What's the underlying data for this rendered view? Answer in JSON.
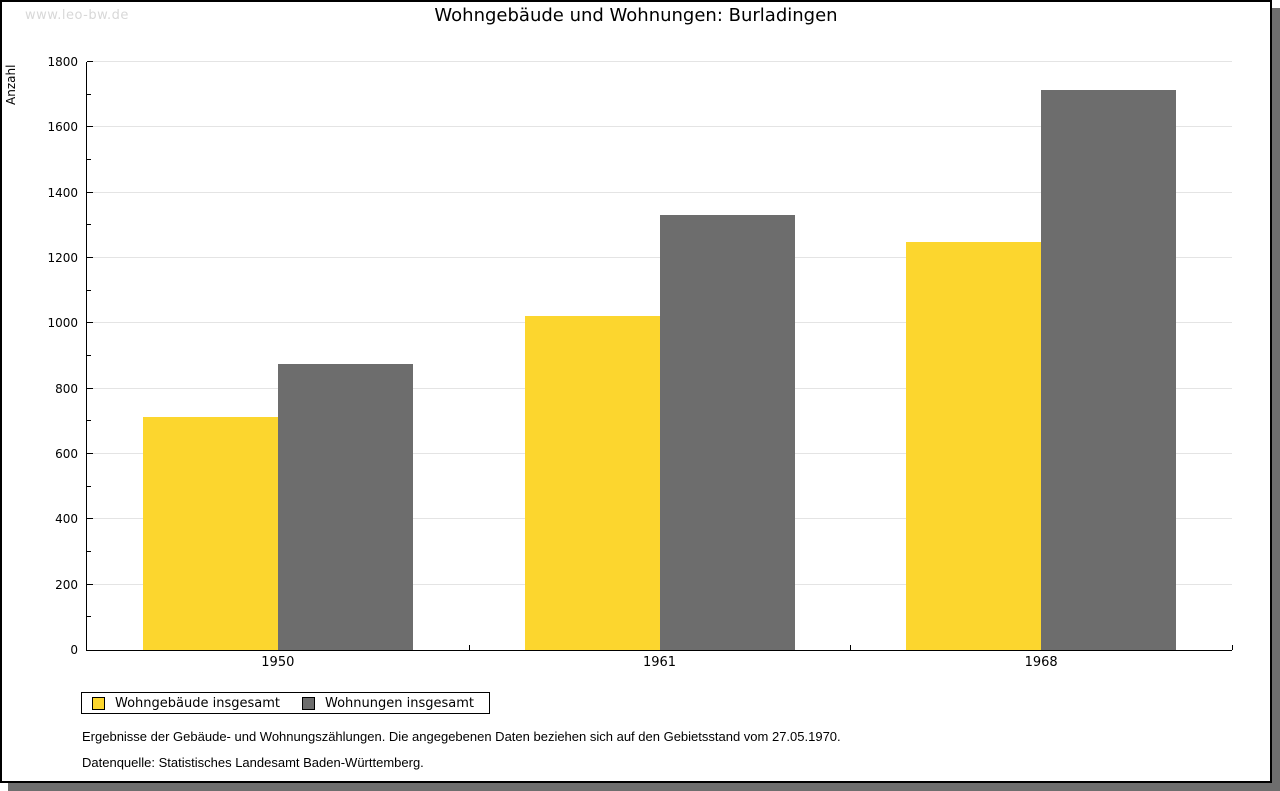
{
  "watermark": "www.leo-bw.de",
  "header": {
    "title": "Wohngebäude und Wohnungen: Burladingen"
  },
  "chart_data": {
    "type": "bar",
    "title": "Wohngebäude und Wohnungen: Burladingen",
    "xlabel": "",
    "ylabel": "Anzahl",
    "ylim": [
      0,
      1800
    ],
    "ytick_step": 200,
    "yminor_step": 100,
    "grid": true,
    "legend_position": "bottom-left",
    "categories": [
      "1950",
      "1961",
      "1968"
    ],
    "series": [
      {
        "name": "Wohngebäude insgesamt",
        "color": "#fcd62e",
        "values": [
          712,
          1022,
          1250
        ]
      },
      {
        "name": "Wohnungen insgesamt",
        "color": "#6d6d6d",
        "values": [
          875,
          1332,
          1715
        ]
      }
    ]
  },
  "footnotes": {
    "line1": "Ergebnisse der Gebäude- und Wohnungszählungen. Die angegebenen Daten beziehen sich auf den Gebietsstand vom 27.05.1970.",
    "line2": "Datenquelle: Statistisches Landesamt Baden-Württemberg."
  },
  "colors": {
    "bar_yellow": "#fcd62e",
    "bar_gray": "#6d6d6d",
    "gridline": "#e4e4e4",
    "frame_shadow": "#6e6e6e",
    "watermark": "#d8d8d8"
  }
}
